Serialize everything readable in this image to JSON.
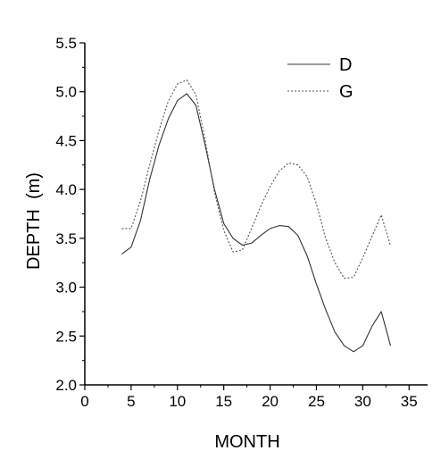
{
  "chart_data": {
    "type": "line",
    "title": "",
    "xlabel": "MONTH",
    "ylabel": "DEPTH  (m)",
    "xlim": [
      0,
      37
    ],
    "ylim": [
      2.0,
      5.5
    ],
    "x_ticks": [
      0,
      5,
      10,
      15,
      20,
      25,
      30,
      35
    ],
    "x_tick_labels": [
      "0",
      "5",
      "10",
      "15",
      "20",
      "25",
      "30",
      "35"
    ],
    "y_ticks": [
      2.0,
      2.5,
      3.0,
      3.5,
      4.0,
      4.5,
      5.0,
      5.5
    ],
    "y_tick_labels": [
      "2.0",
      "2.5",
      "3.0",
      "3.5",
      "4.0",
      "4.5",
      "5.0",
      "5.5"
    ],
    "grid": false,
    "legend_position": "top-right",
    "series": [
      {
        "name": "D",
        "line_style": "solid",
        "color": "#333333",
        "x": [
          4,
          5,
          6,
          7,
          8,
          9,
          10,
          11,
          12,
          13,
          14,
          15,
          16,
          17,
          18,
          19,
          20,
          21,
          22,
          23,
          24,
          25,
          26,
          27,
          28,
          29,
          30,
          31,
          32,
          33
        ],
        "y": [
          3.34,
          3.41,
          3.68,
          4.1,
          4.45,
          4.72,
          4.91,
          4.98,
          4.86,
          4.45,
          4.0,
          3.65,
          3.5,
          3.43,
          3.45,
          3.53,
          3.6,
          3.63,
          3.62,
          3.53,
          3.32,
          3.03,
          2.77,
          2.54,
          2.4,
          2.34,
          2.4,
          2.6,
          2.75,
          2.4
        ]
      },
      {
        "name": "G",
        "line_style": "dotted",
        "color": "#555555",
        "x": [
          4,
          5,
          6,
          7,
          8,
          9,
          10,
          11,
          12,
          13,
          14,
          15,
          16,
          17,
          18,
          19,
          20,
          21,
          22,
          23,
          24,
          25,
          26,
          27,
          28,
          29,
          30,
          31,
          32,
          33
        ],
        "y": [
          3.6,
          3.6,
          3.88,
          4.25,
          4.6,
          4.9,
          5.08,
          5.12,
          4.97,
          4.5,
          3.97,
          3.58,
          3.36,
          3.38,
          3.6,
          3.83,
          4.03,
          4.19,
          4.27,
          4.25,
          4.13,
          3.85,
          3.5,
          3.25,
          3.09,
          3.1,
          3.3,
          3.52,
          3.74,
          3.42
        ]
      }
    ]
  }
}
